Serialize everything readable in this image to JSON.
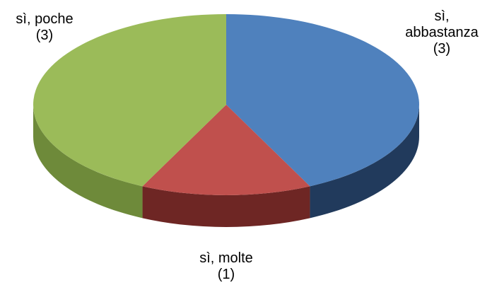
{
  "chart_data": {
    "type": "pie",
    "categories": [
      "sì, abbastanza",
      "sì, molte",
      "sì, poche"
    ],
    "values": [
      3,
      1,
      3
    ],
    "value_labels": [
      "(3)",
      "(1)",
      "(3)"
    ],
    "colors": [
      "#4f81bd",
      "#c0504d",
      "#9bbb59"
    ],
    "side_colors": [
      "#213a5c",
      "#6e2624",
      "#6e8a3a"
    ]
  }
}
